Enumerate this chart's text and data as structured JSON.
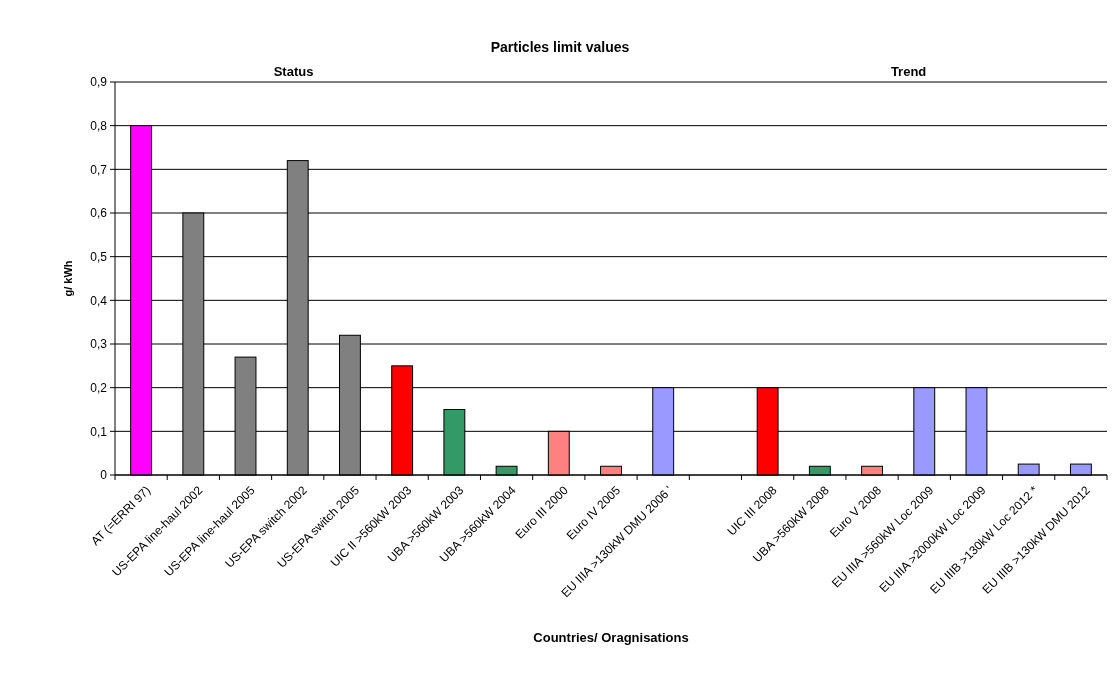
{
  "chart_data": {
    "type": "bar",
    "title": "Particles limit values",
    "xlabel": "Countries/ Oragnisations",
    "ylabel": "g/ kWh",
    "annotations": [
      "Status",
      "Trend"
    ],
    "categories": [
      "AT (=ERRI 97)",
      "US-EPA line-haul 2002",
      "US-EPA line-haul 2005",
      "US-EPA switch 2002",
      "US-EPA switch 2005",
      "UIC II >560kW 2003",
      "UBA >560kW 2003",
      "UBA >560kW 2004",
      "Euro III 2000",
      "Euro IV 2005",
      "EU IIIA >130kW DMU 2006 '",
      null,
      "UIC III 2008",
      "UBA >560kW 2008",
      "Euro V 2008",
      "EU IIIA >560kW Loc 2009",
      "EU IIIA >2000kW Loc 2009",
      "EU IIIB >130kW Loc 2012 *",
      "EU IIIB >130kW DMU 2012"
    ],
    "values": [
      0.8,
      0.6,
      0.27,
      0.72,
      0.32,
      0.25,
      0.15,
      0.02,
      0.1,
      0.02,
      0.2,
      null,
      0.2,
      0.02,
      0.02,
      0.2,
      0.2,
      0.025,
      0.025
    ],
    "colors": [
      "#ff00ff",
      "#808080",
      "#808080",
      "#808080",
      "#808080",
      "#ff0000",
      "#339966",
      "#339966",
      "#ff8080",
      "#ff8080",
      "#9999ff",
      null,
      "#ff0000",
      "#339966",
      "#ff8080",
      "#9999ff",
      "#9999ff",
      "#9999ff",
      "#9999ff"
    ],
    "ylim": [
      0,
      0.9
    ],
    "yticks": [
      {
        "value": 0,
        "label": "0"
      },
      {
        "value": 0.1,
        "label": "0,1"
      },
      {
        "value": 0.2,
        "label": "0,2"
      },
      {
        "value": 0.3,
        "label": "0,3"
      },
      {
        "value": 0.4,
        "label": "0,4"
      },
      {
        "value": 0.5,
        "label": "0,5"
      },
      {
        "value": 0.6,
        "label": "0,6"
      },
      {
        "value": 0.7,
        "label": "0,7"
      },
      {
        "value": 0.8,
        "label": "0,8"
      },
      {
        "value": 0.9,
        "label": "0,9"
      }
    ],
    "grid": "y"
  }
}
